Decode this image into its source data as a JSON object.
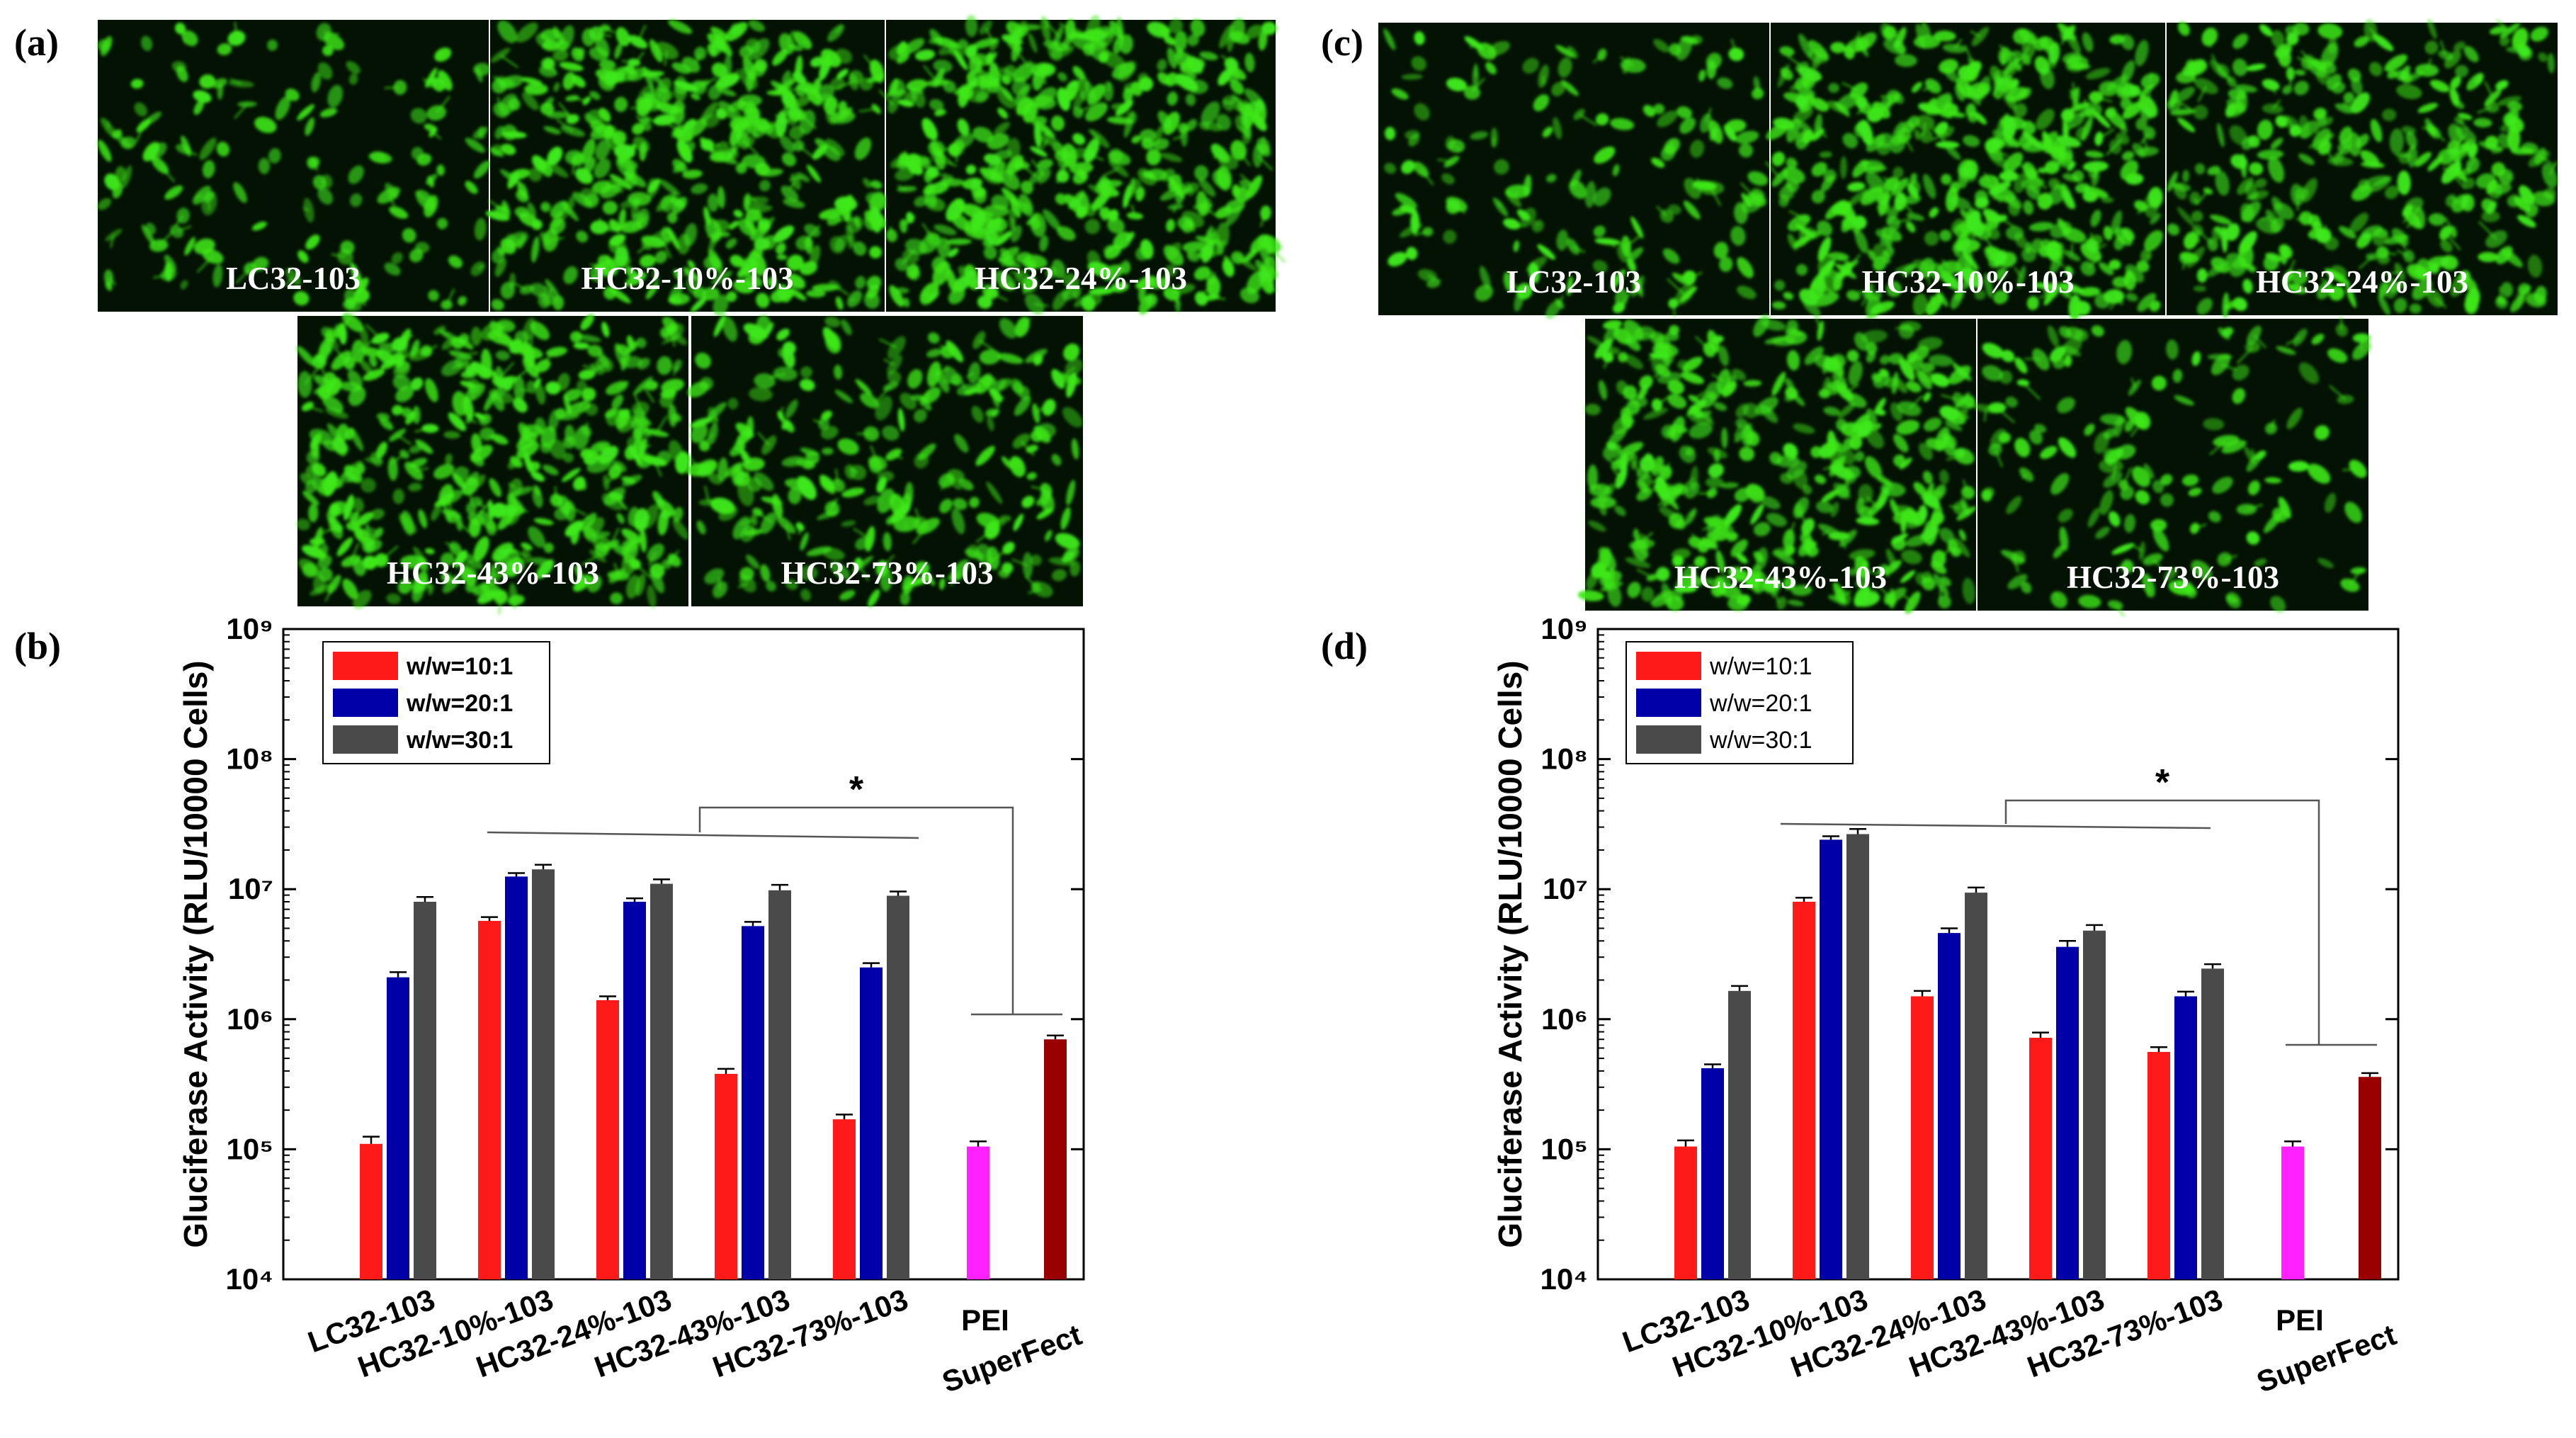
{
  "panel_labels": {
    "a": "(a)",
    "b": "(b)",
    "c": "(c)",
    "d": "(d)"
  },
  "micrographs": {
    "a": [
      "LC32-103",
      "HC32-10%-103",
      "HC32-24%-103",
      "HC32-43%-103",
      "HC32-73%-103"
    ],
    "c": [
      "LC32-103",
      "HC32-10%-103",
      "HC32-24%-103",
      "HC32-43%-103",
      "HC32-73%-103"
    ]
  },
  "colors": {
    "fluorescence": "#3ee81a",
    "micro_bg": "#041204",
    "series": [
      "#ff1a1a",
      "#0000a8",
      "#4a4a4a"
    ],
    "pei": "#ff22ff",
    "superfect": "#990000"
  },
  "chart_data": [
    {
      "panel": "(b)",
      "type": "bar",
      "yscale": "log",
      "ylabel": "Gluciferase Activity (RLU/10000 Cells)",
      "ylim": [
        10000,
        1000000000
      ],
      "yticks": [
        "10^4",
        "10^5",
        "10^6",
        "10^7",
        "10^8",
        "10^9"
      ],
      "categories": [
        "LC32-103",
        "HC32-10%-103",
        "HC32-24%-103",
        "HC32-43%-103",
        "HC32-73%-103"
      ],
      "legend_bold": true,
      "series": [
        {
          "name": "w/w=10:1",
          "values": [
            110000,
            5700000,
            1400000,
            380000,
            170000
          ],
          "errors": [
            15000,
            400000,
            100000,
            35000,
            15000
          ]
        },
        {
          "name": "w/w=20:1",
          "values": [
            2100000,
            12500000,
            8000000,
            5200000,
            2500000
          ],
          "errors": [
            200000,
            800000,
            500000,
            400000,
            200000
          ]
        },
        {
          "name": "w/w=30:1",
          "values": [
            8000000,
            14200000,
            11000000,
            9800000,
            8900000
          ],
          "errors": [
            700000,
            1200000,
            900000,
            1000000,
            700000
          ]
        }
      ],
      "controls": [
        {
          "name": "PEI",
          "value": 105000,
          "error": 10000
        },
        {
          "name": "SuperFect",
          "value": 700000,
          "error": 50000
        }
      ],
      "annotation": "*"
    },
    {
      "panel": "(d)",
      "type": "bar",
      "yscale": "log",
      "ylabel": "Gluciferase Activity (RLU/10000 Cells)",
      "ylim": [
        10000,
        1000000000
      ],
      "yticks": [
        "10^4",
        "10^5",
        "10^6",
        "10^7",
        "10^8",
        "10^9"
      ],
      "categories": [
        "LC32-103",
        "HC32-10%-103",
        "HC32-24%-103",
        "HC32-43%-103",
        "HC32-73%-103"
      ],
      "legend_bold": false,
      "series": [
        {
          "name": "w/w=10:1",
          "values": [
            105000,
            8000000,
            1500000,
            720000,
            560000
          ],
          "errors": [
            12000,
            600000,
            150000,
            70000,
            50000
          ]
        },
        {
          "name": "w/w=20:1",
          "values": [
            420000,
            24000000,
            4600000,
            3600000,
            1500000
          ],
          "errors": [
            30000,
            1500000,
            400000,
            400000,
            130000
          ]
        },
        {
          "name": "w/w=30:1",
          "values": [
            1650000,
            26500000,
            9400000,
            4800000,
            2450000
          ],
          "errors": [
            150000,
            2500000,
            900000,
            500000,
            200000
          ]
        }
      ],
      "controls": [
        {
          "name": "PEI",
          "value": 105000,
          "error": 10000
        },
        {
          "name": "SuperFect",
          "value": 360000,
          "error": 25000
        }
      ],
      "annotation": "*"
    }
  ]
}
